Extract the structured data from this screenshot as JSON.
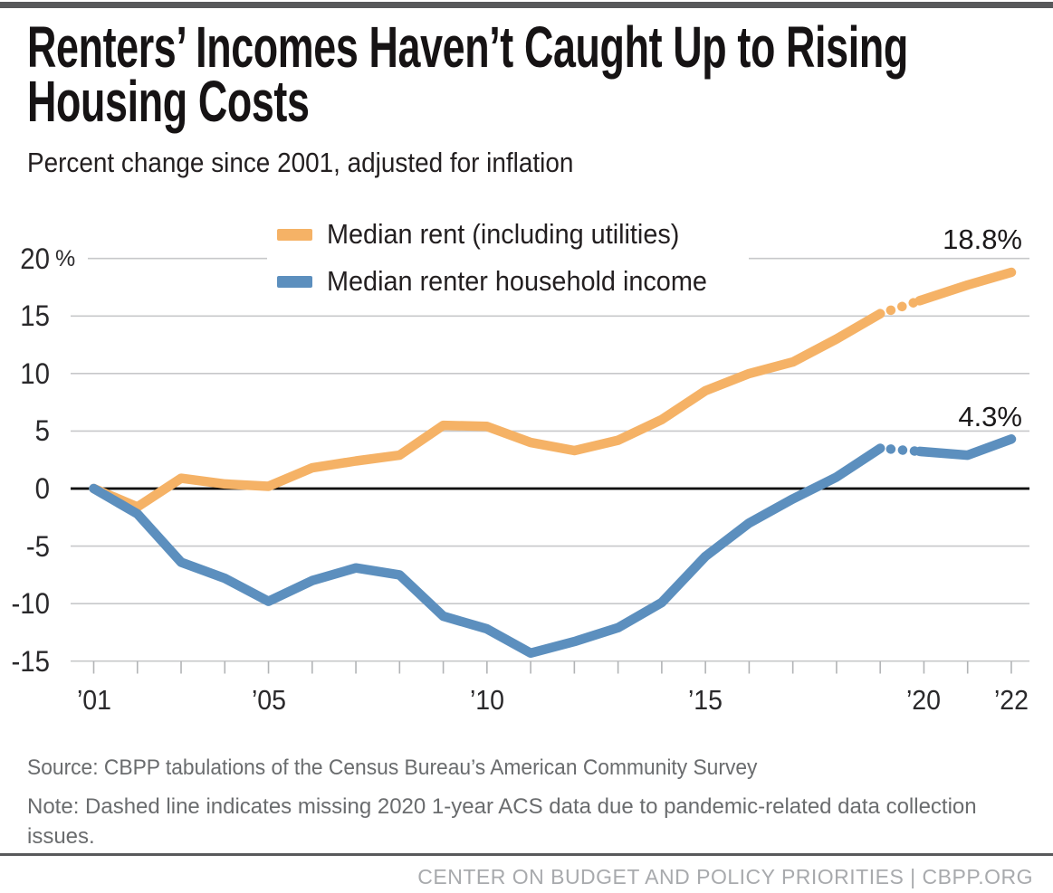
{
  "header": {
    "title_line1": "Renters’ Incomes Haven’t Caught Up to Rising",
    "title_line2": "Housing Costs",
    "subtitle": "Percent change since 2001, adjusted for inflation"
  },
  "colors": {
    "rent": "#F5B266",
    "income": "#5C8FBE",
    "grid": "#C7C8CA",
    "tick": "#B2B4B6",
    "zero_line": "#000000",
    "top_bar": "#58595b",
    "footer_text": "#6a6c6e",
    "org_text": "#a8aaad"
  },
  "legend": {
    "items": [
      {
        "label": "Median rent (including utilities)",
        "color": "#F5B266"
      },
      {
        "label": "Median renter household income",
        "color": "#5C8FBE"
      }
    ]
  },
  "chart_data": {
    "type": "line",
    "title": "Renters’ Incomes Haven’t Caught Up to Rising Housing Costs",
    "subtitle": "Percent change since 2001, adjusted for inflation",
    "xlabel": "",
    "ylabel": "Percent change since 2001",
    "x": [
      2001,
      2002,
      2003,
      2004,
      2005,
      2006,
      2007,
      2008,
      2009,
      2010,
      2011,
      2012,
      2013,
      2014,
      2015,
      2016,
      2017,
      2018,
      2019,
      2020,
      2021,
      2022
    ],
    "missing_x": 2020,
    "missing_note": "2020 value missing (dashed bridge segment between 2019 and 2021 data)",
    "series": [
      {
        "name": "Median rent (including utilities)",
        "color": "#F5B266",
        "end_label": "18.8%",
        "values": [
          0,
          -1.6,
          0.9,
          0.4,
          0.2,
          1.8,
          2.4,
          2.9,
          5.5,
          5.4,
          4.0,
          3.3,
          4.2,
          6.0,
          8.5,
          10.0,
          11.0,
          13.0,
          15.2,
          null,
          17.7,
          18.8
        ]
      },
      {
        "name": "Median renter household income",
        "color": "#5C8FBE",
        "end_label": "4.3%",
        "values": [
          0,
          -2.2,
          -6.4,
          -7.8,
          -9.8,
          -8.0,
          -6.9,
          -7.5,
          -11.1,
          -12.2,
          -14.3,
          -13.3,
          -12.1,
          -9.9,
          -5.9,
          -3.0,
          -0.9,
          1.0,
          3.5,
          null,
          2.9,
          4.3
        ]
      }
    ],
    "ylim": [
      -15,
      20
    ],
    "grid": true,
    "legend_position": "top-center",
    "y_ticks": [
      {
        "v": 20,
        "label": "20",
        "suffix": "%"
      },
      {
        "v": 15,
        "label": "15"
      },
      {
        "v": 10,
        "label": "10"
      },
      {
        "v": 5,
        "label": "5"
      },
      {
        "v": 0,
        "label": "0"
      },
      {
        "v": -5,
        "label": "-5"
      },
      {
        "v": -10,
        "label": "-10"
      },
      {
        "v": -15,
        "label": "-15"
      }
    ],
    "x_tick_labels": [
      {
        "x": 2001,
        "label": "’01"
      },
      {
        "x": 2005,
        "label": "’05"
      },
      {
        "x": 2010,
        "label": "’10"
      },
      {
        "x": 2015,
        "label": "’15"
      },
      {
        "x": 2020,
        "label": "’20"
      },
      {
        "x": 2022,
        "label": "’22"
      }
    ]
  },
  "footer": {
    "source": "Source: CBPP tabulations of the Census Bureau’s American Community Survey",
    "note": "Note: Dashed line indicates missing 2020 1-year ACS data due to pandemic-related data collection issues.",
    "org_bar": "CENTER ON BUDGET AND POLICY PRIORITIES | CBPP.ORG"
  }
}
